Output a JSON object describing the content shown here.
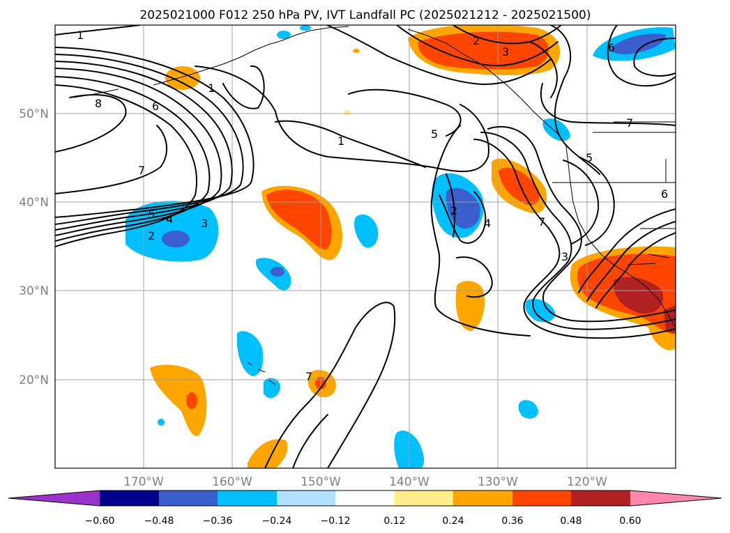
{
  "title": "2025021000 F012 250 hPa PV, IVT Landfall PC (2025021212 - 2025021500)",
  "lat_labels": [
    "50°N",
    "40°N",
    "30°N",
    "20°N"
  ],
  "lon_labels": [
    "170°W",
    "160°W",
    "150°W",
    "140°W",
    "130°W",
    "120°W"
  ],
  "colorbar": {
    "ticks": [
      "−0.60",
      "−0.48",
      "−0.36",
      "−0.24",
      "−0.12",
      "0.12",
      "0.24",
      "0.36",
      "0.48",
      "0.60"
    ],
    "colors": [
      "#9933cc",
      "#00008b",
      "#3a5fcd",
      "#00bfff",
      "#b0e2ff",
      "#ffffff",
      "#ffec8b",
      "#ffa500",
      "#ff4500",
      "#b22222",
      "#ff88aa"
    ]
  },
  "contour_labels": [
    "1",
    "8",
    "6",
    "1",
    "7",
    "5",
    "4",
    "3",
    "2",
    "1",
    "5",
    "2",
    "3",
    "6",
    "5",
    "7",
    "2",
    "4",
    "7",
    "3",
    "6",
    "7"
  ]
}
